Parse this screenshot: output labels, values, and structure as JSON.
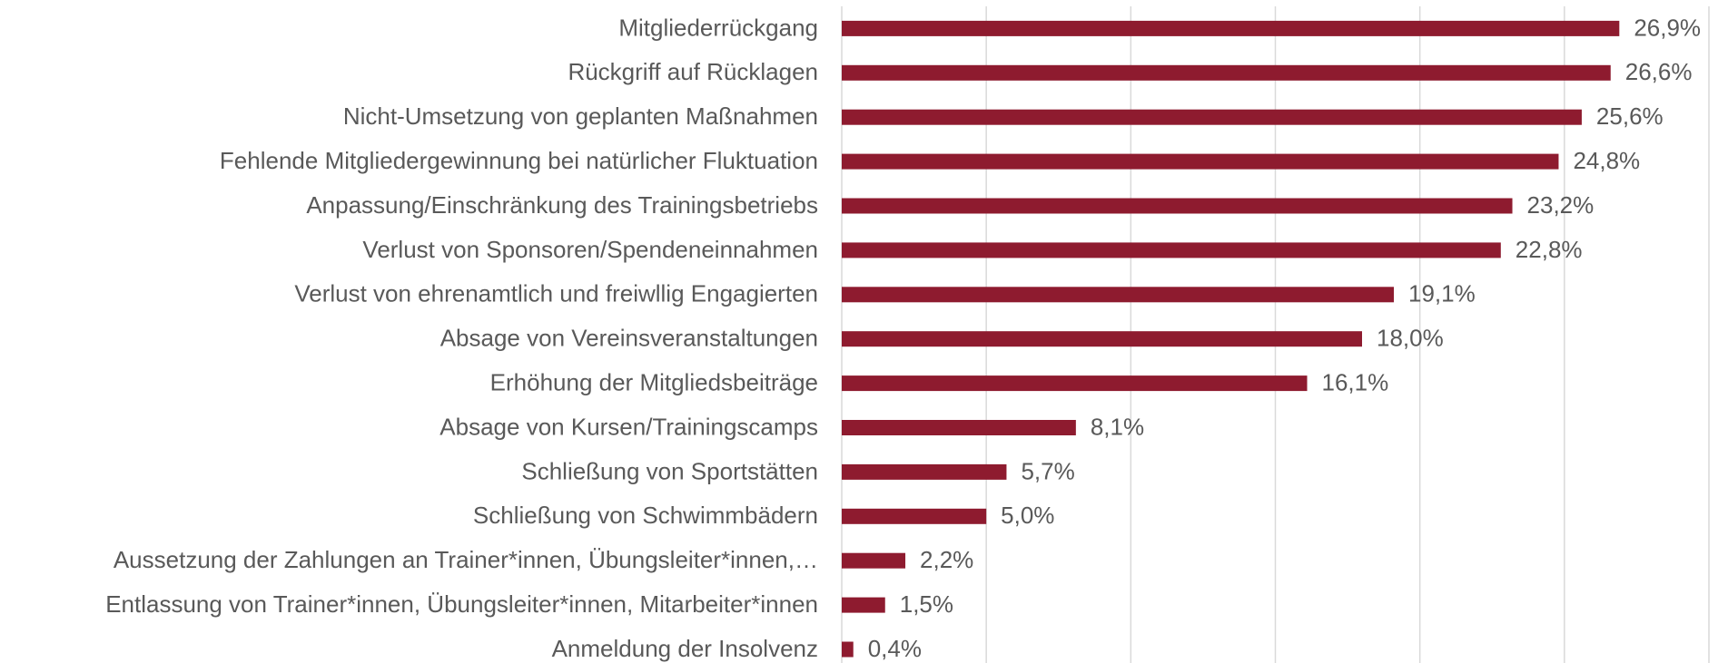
{
  "chart_data": {
    "type": "hbar",
    "categories": [
      "Mitgliederrückgang",
      "Rückgriff auf Rücklagen",
      "Nicht-Umsetzung von geplanten Maßnahmen",
      "Fehlende Mitgliedergewinnung bei natürlicher Fluktuation",
      "Anpassung/Einschränkung des Trainingsbetriebs",
      "Verlust von Sponsoren/Spendeneinnahmen",
      "Verlust von ehrenamtlich und freiwllig Engagierten",
      "Absage von Vereinsveranstaltungen",
      "Erhöhung der Mitgliedsbeiträge",
      "Absage von Kursen/Trainingscamps",
      "Schließung von Sportstätten",
      "Schließung von Schwimmbädern",
      "Aussetzung der Zahlungen an Trainer*innen, Übungsleiter*innen,…",
      "Entlassung von Trainer*innen, Übungsleiter*innen, Mitarbeiter*innen",
      "Anmeldung der Insolvenz"
    ],
    "values": [
      26.9,
      26.6,
      25.6,
      24.8,
      23.2,
      22.8,
      19.1,
      18.0,
      16.1,
      8.1,
      5.7,
      5.0,
      2.2,
      1.5,
      0.4
    ],
    "value_labels": [
      "26,9%",
      "26,6%",
      "25,6%",
      "24,8%",
      "23,2%",
      "22,8%",
      "19,1%",
      "18,0%",
      "16,1%",
      "8,1%",
      "5,7%",
      "5,0%",
      "2,2%",
      "1,5%",
      "0,4%"
    ],
    "color": "#8e1b2f",
    "xlim": [
      0,
      30
    ],
    "xticks": [
      0,
      5,
      10,
      15,
      20,
      25,
      30
    ],
    "grid": true
  }
}
